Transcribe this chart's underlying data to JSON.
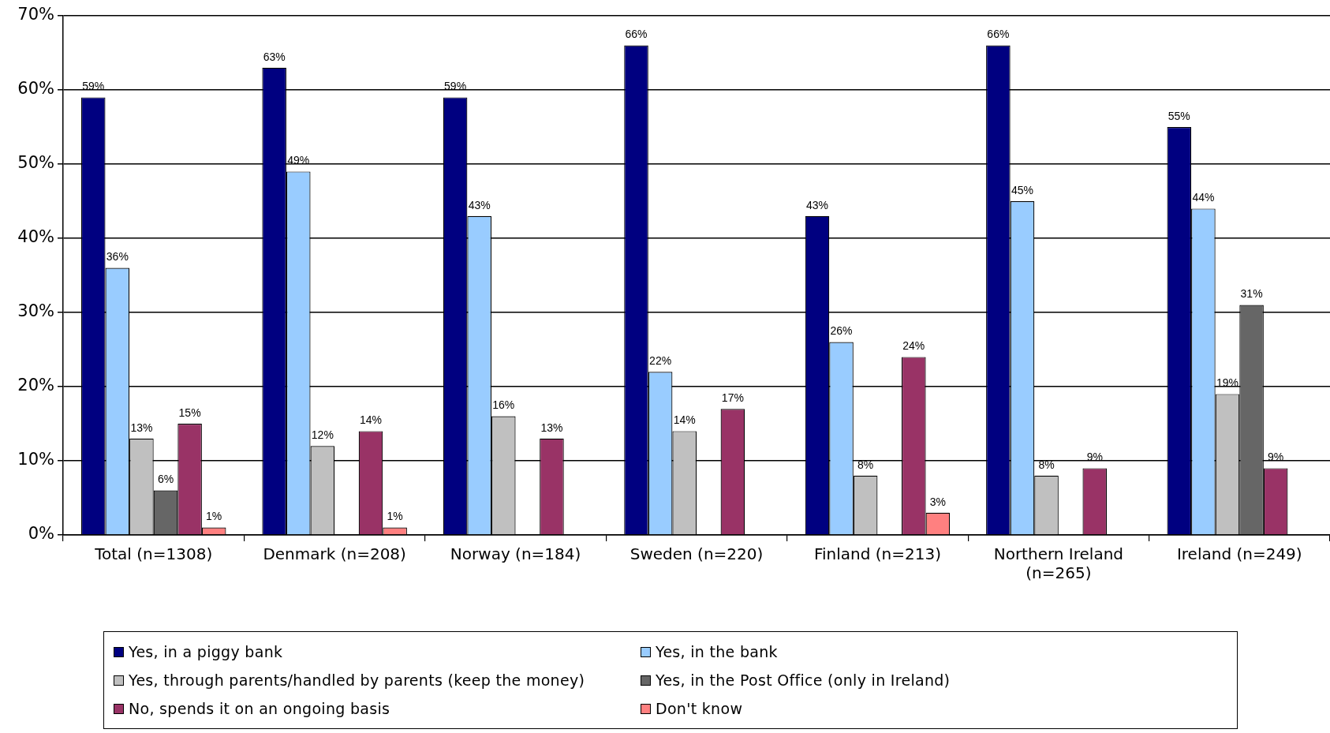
{
  "chart_data": {
    "type": "bar",
    "categories": [
      "Total (n=1308)",
      "Denmark (n=208)",
      "Norway (n=184)",
      "Sweden (n=220)",
      "Finland (n=213)",
      "Northern Ireland (n=265)",
      "Ireland (n=249)"
    ],
    "series": [
      {
        "name": "Yes, in a piggy bank",
        "color": "#000080",
        "values": [
          59,
          63,
          59,
          66,
          43,
          66,
          55
        ],
        "value_labels": [
          "59%",
          "63%",
          "59%",
          "66%",
          "43%",
          "66%",
          "55%"
        ]
      },
      {
        "name": "Yes, in the bank",
        "color": "#99ccff",
        "values": [
          36,
          49,
          43,
          22,
          26,
          45,
          44
        ],
        "value_labels": [
          "36%",
          "49%",
          "43%",
          "22%",
          "26%",
          "45%",
          "44%"
        ]
      },
      {
        "name": "Yes, through parents/handled by parents (keep the money)",
        "color": "#c0c0c0",
        "values": [
          13,
          12,
          16,
          14,
          8,
          8,
          19
        ],
        "value_labels": [
          "13%",
          "12%",
          "16%",
          "14%",
          "8%",
          "8%",
          "19%"
        ]
      },
      {
        "name": "Yes, in the Post Office (only in Ireland)",
        "color": "#666666",
        "values": [
          6,
          null,
          null,
          null,
          null,
          null,
          31
        ],
        "value_labels": [
          "6%",
          null,
          null,
          null,
          null,
          null,
          "31%"
        ]
      },
      {
        "name": "No, spends it on an ongoing basis",
        "color": "#993366",
        "values": [
          15,
          14,
          13,
          17,
          24,
          9,
          9
        ],
        "value_labels": [
          "15%",
          "14%",
          "13%",
          "17%",
          "24%",
          "9%",
          "9%"
        ]
      },
      {
        "name": "Don't know",
        "color": "#ff8080",
        "values": [
          1,
          1,
          null,
          null,
          3,
          null,
          null
        ],
        "value_labels": [
          "1%",
          "1%",
          null,
          null,
          "3%",
          null,
          null
        ]
      }
    ],
    "ylim": [
      0,
      70
    ],
    "yticks": [
      {
        "value": 0,
        "label": "0%"
      },
      {
        "value": 10,
        "label": "10%"
      },
      {
        "value": 20,
        "label": "20%"
      },
      {
        "value": 30,
        "label": "30%"
      },
      {
        "value": 40,
        "label": "40%"
      },
      {
        "value": 50,
        "label": "50%"
      },
      {
        "value": 60,
        "label": "60%"
      },
      {
        "value": 70,
        "label": "70%"
      }
    ],
    "grid": "y",
    "legend": "bottom"
  }
}
